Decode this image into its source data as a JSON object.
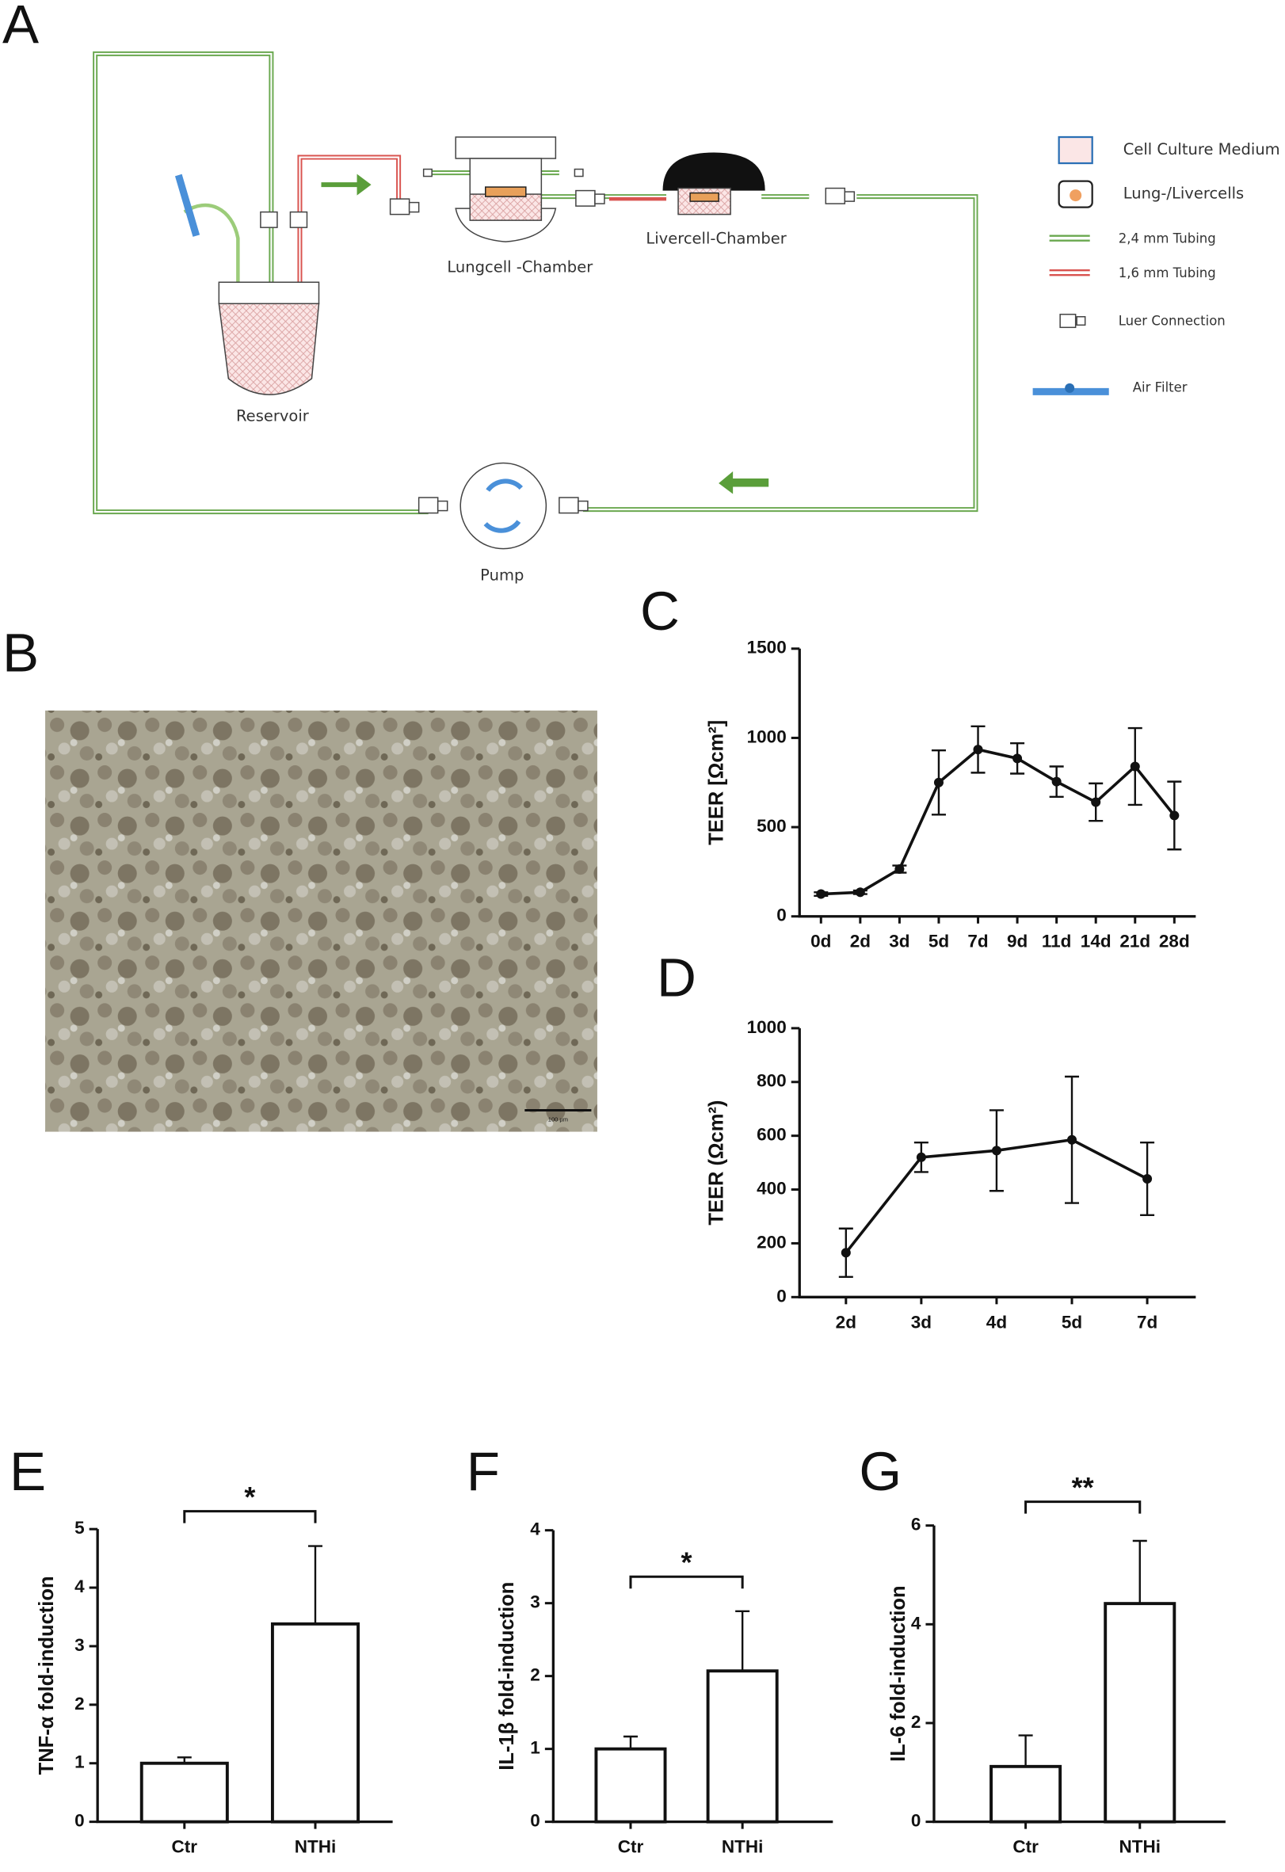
{
  "diagram": {
    "panel": "A",
    "lungcell": "Lungcell -Chamber",
    "livercell": "Livercell-Chamber",
    "reservoir": "Reservoir",
    "pump": "Pump",
    "legend": [
      "Cell Culture Medium",
      "Lung-/Livercells",
      "2,4 mm Tubing",
      "1,6 mm Tubing",
      "Luer Connection",
      "Air Filter"
    ]
  },
  "photo": {
    "panel": "B",
    "scale_bar": "100 µm"
  },
  "chart_data": [
    {
      "type": "line",
      "panel": "C",
      "y_label": "TEER [Ωcm²]",
      "categories": [
        "0d",
        "2d",
        "3d",
        "5d",
        "7d",
        "9d",
        "11d",
        "14d",
        "21d",
        "28d"
      ],
      "values": [
        125,
        135,
        265,
        750,
        935,
        885,
        755,
        640,
        840,
        565
      ],
      "errors": [
        10,
        10,
        20,
        180,
        130,
        85,
        85,
        105,
        215,
        190
      ],
      "color": "#111111",
      "ylim": [
        0,
        1500
      ],
      "yticks": [
        0,
        500,
        1000,
        1500
      ]
    },
    {
      "type": "line",
      "panel": "D",
      "y_label": "TEER (Ωcm²)",
      "categories": [
        "2d",
        "3d",
        "4d",
        "5d",
        "7d"
      ],
      "values": [
        165,
        520,
        545,
        585,
        440
      ],
      "errors": [
        90,
        55,
        150,
        235,
        135
      ],
      "color": "#111111",
      "ylim": [
        0,
        1000
      ],
      "yticks": [
        0,
        200,
        400,
        600,
        800,
        1000
      ]
    },
    {
      "type": "bar",
      "panel": "E",
      "y_label": "TNF-α fold-induction",
      "categories": [
        "Ctr",
        "NTHi"
      ],
      "values": [
        1.0,
        3.38
      ],
      "errors": [
        0.1,
        1.33
      ],
      "annotation": "*",
      "color": "#ffffff",
      "ylim": [
        0,
        5
      ],
      "yticks": [
        0,
        1,
        2,
        3,
        4,
        5
      ]
    },
    {
      "type": "bar",
      "panel": "F",
      "y_label": "IL-1β fold-induction",
      "categories": [
        "Ctr",
        "NTHi"
      ],
      "values": [
        1.0,
        2.07
      ],
      "errors": [
        0.17,
        0.82
      ],
      "annotation": "*",
      "color": "#ffffff",
      "ylim": [
        0,
        4
      ],
      "yticks": [
        0,
        1,
        2,
        3,
        4
      ]
    },
    {
      "type": "bar",
      "panel": "G",
      "y_label": "IL-6 fold-induction",
      "categories": [
        "Ctr",
        "NTHi"
      ],
      "values": [
        1.12,
        4.42
      ],
      "errors": [
        0.63,
        1.27
      ],
      "annotation": "**",
      "color": "#ffffff",
      "ylim": [
        0,
        6
      ],
      "yticks": [
        0,
        2,
        4,
        6
      ]
    }
  ]
}
